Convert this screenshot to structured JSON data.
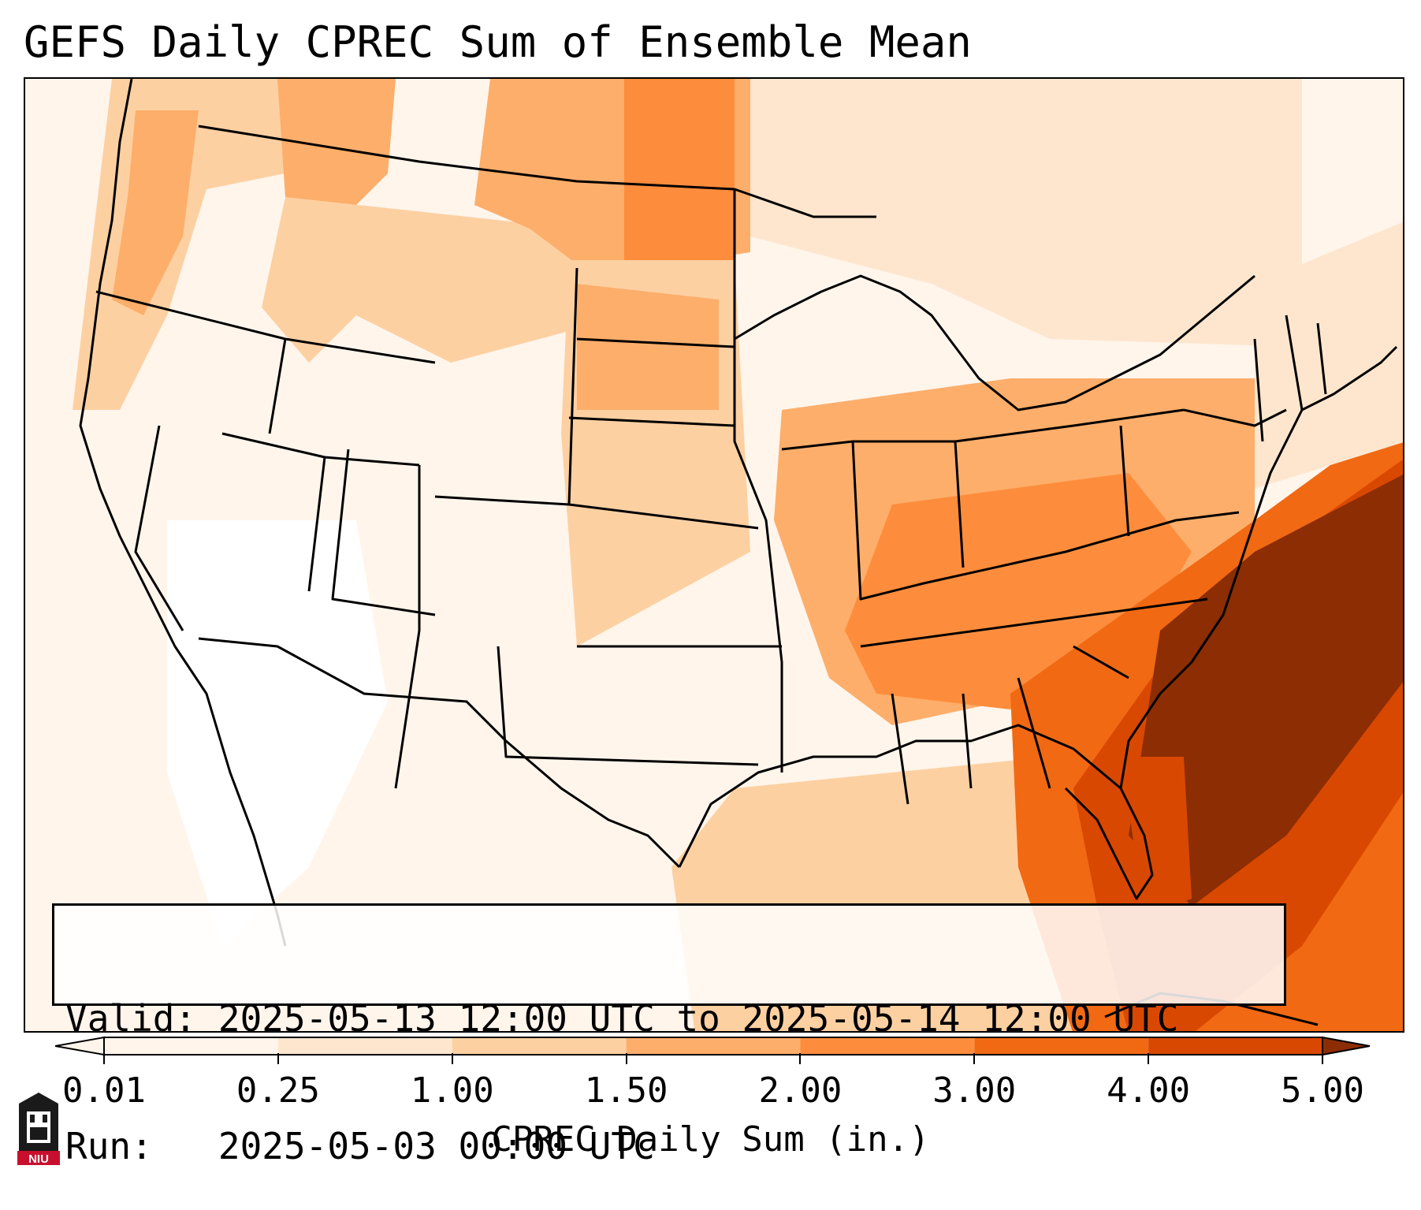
{
  "title": "GEFS Daily CPREC Sum of Ensemble Mean",
  "info": {
    "valid_label": "Valid:",
    "valid_value": "2025-05-13 12:00 UTC to 2025-05-14 12:00 UTC",
    "run_label": "Run:",
    "run_value": "2025-05-03 00:00 UTC"
  },
  "colorbar": {
    "label": "CPREC Daily Sum (in.)",
    "ticks": [
      "0.01",
      "0.25",
      "1.00",
      "1.50",
      "2.00",
      "3.00",
      "4.00",
      "5.00"
    ],
    "tick_values": [
      0.01,
      0.25,
      1.0,
      1.5,
      2.0,
      3.0,
      4.0,
      5.0
    ],
    "colors": [
      "#fff5eb",
      "#fee6ce",
      "#fdd0a2",
      "#fdae6b",
      "#fd8d3c",
      "#f16913",
      "#d94801",
      "#8c2d04"
    ],
    "extend": "both"
  },
  "palette": {
    "very_light": "#fff5eb",
    "light": "#fee6ce",
    "light_mid": "#fdd0a2",
    "mid": "#fdae6b",
    "mid_dark": "#fd8d3c",
    "dark": "#f16913",
    "darker": "#d94801",
    "darkest": "#8c2d04"
  },
  "logo": {
    "text": "NIU"
  }
}
